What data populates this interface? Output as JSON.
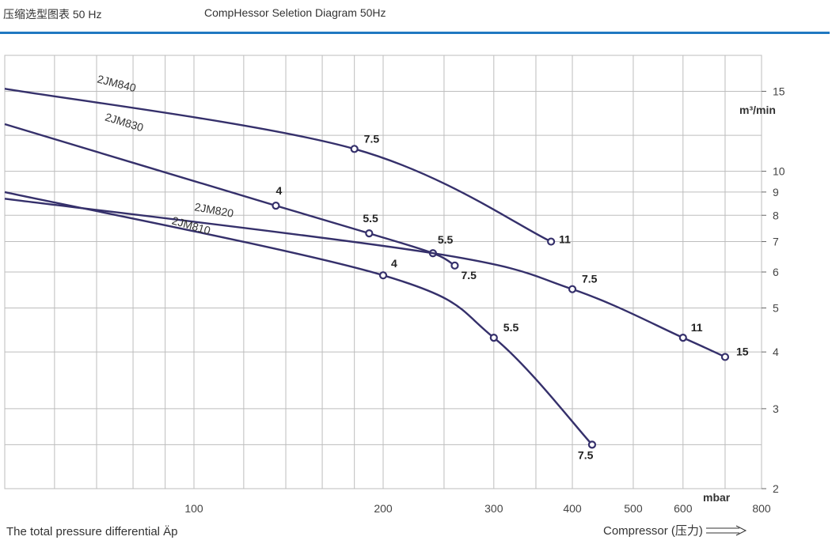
{
  "header": {
    "title_cn": "压缩选型图表 50 Hz",
    "title_en": "CompHessor Seletion Diagram 50Hz"
  },
  "chart_data": {
    "type": "line",
    "title": "CompHessor Seletion Diagram 50Hz",
    "x_scale": "log",
    "y_scale": "log",
    "xlim": [
      50,
      800
    ],
    "ylim": [
      2,
      18
    ],
    "x_ticks": [
      100,
      200,
      300,
      400,
      500,
      600,
      800
    ],
    "y_ticks": [
      2,
      3,
      4,
      5,
      6,
      7,
      8,
      9,
      10,
      15
    ],
    "xlabel": "The total pressure differential Äp",
    "xlabel_secondary": "Compressor (压力)",
    "ylabel": "m³/min",
    "x_unit": "mbar",
    "series": [
      {
        "name": "2JM840",
        "x": [
          50,
          180,
          370
        ],
        "y": [
          15.2,
          11.2,
          7.0
        ],
        "points": [
          {
            "x": 180,
            "y": 11.2,
            "label": "7.5"
          },
          {
            "x": 370,
            "y": 7.0,
            "label": "11"
          }
        ]
      },
      {
        "name": "2JM830",
        "x": [
          50,
          135,
          190,
          240,
          260
        ],
        "y": [
          12.7,
          8.4,
          7.3,
          6.6,
          6.2
        ],
        "points": [
          {
            "x": 135,
            "y": 8.4,
            "label": "4"
          },
          {
            "x": 190,
            "y": 7.3,
            "label": "5.5"
          },
          {
            "x": 240,
            "y": 6.6,
            "label": "5.5"
          },
          {
            "x": 260,
            "y": 6.2,
            "label": "7.5"
          }
        ]
      },
      {
        "name": "2JM820",
        "x": [
          50,
          240,
          400,
          600,
          700
        ],
        "y": [
          8.7,
          6.6,
          5.5,
          4.3,
          3.9
        ],
        "points": [
          {
            "x": 400,
            "y": 5.5,
            "label": "7.5"
          },
          {
            "x": 600,
            "y": 4.3,
            "label": "11"
          },
          {
            "x": 700,
            "y": 3.9,
            "label": "15"
          }
        ]
      },
      {
        "name": "2JM810",
        "x": [
          50,
          200,
          300,
          430
        ],
        "y": [
          9.0,
          5.9,
          4.3,
          2.5
        ],
        "points": [
          {
            "x": 200,
            "y": 5.9,
            "label": "4"
          },
          {
            "x": 300,
            "y": 4.3,
            "label": "5.5"
          },
          {
            "x": 430,
            "y": 2.5,
            "label": "7.5"
          }
        ]
      }
    ]
  }
}
